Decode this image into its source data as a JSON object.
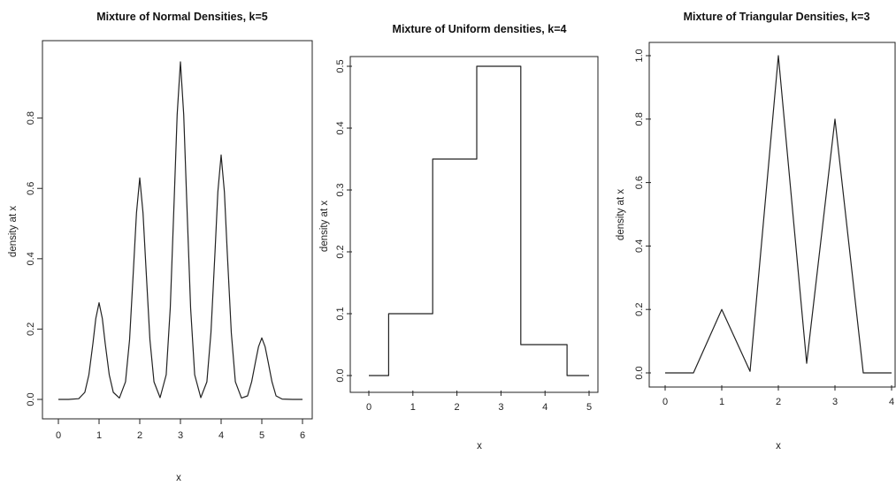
{
  "chart_data": [
    {
      "type": "line",
      "title": "Mixture of Normal Densities, k=5",
      "xlabel": "x",
      "ylabel": "density at x",
      "xlim": [
        0,
        6
      ],
      "ylim": [
        0,
        0.97
      ],
      "xticks": [
        "0",
        "1",
        "2",
        "3",
        "4",
        "5",
        "6"
      ],
      "yticks": [
        "0.0",
        "0.2",
        "0.4",
        "0.6",
        "0.8"
      ],
      "grid": false,
      "series": [
        {
          "x": [
            0,
            0.25,
            0.5,
            0.65,
            0.75,
            0.85,
            0.92,
            1.0,
            1.08,
            1.15,
            1.25,
            1.35,
            1.5,
            1.65,
            1.75,
            1.85,
            1.92,
            2.0,
            2.08,
            2.15,
            2.25,
            2.35,
            2.5,
            2.65,
            2.75,
            2.85,
            2.92,
            3.0,
            3.08,
            3.15,
            3.25,
            3.35,
            3.5,
            3.65,
            3.75,
            3.85,
            3.92,
            4.0,
            4.08,
            4.15,
            4.25,
            4.35,
            4.5,
            4.65,
            4.75,
            4.85,
            4.92,
            5.0,
            5.08,
            5.15,
            5.25,
            5.35,
            5.5,
            5.75,
            6.0
          ],
          "y": [
            0,
            0,
            0.002,
            0.02,
            0.07,
            0.16,
            0.23,
            0.275,
            0.23,
            0.16,
            0.07,
            0.02,
            0.004,
            0.05,
            0.17,
            0.38,
            0.53,
            0.63,
            0.53,
            0.38,
            0.17,
            0.05,
            0.005,
            0.07,
            0.26,
            0.58,
            0.81,
            0.96,
            0.81,
            0.58,
            0.26,
            0.07,
            0.005,
            0.05,
            0.19,
            0.42,
            0.59,
            0.695,
            0.59,
            0.42,
            0.19,
            0.05,
            0.004,
            0.01,
            0.05,
            0.11,
            0.15,
            0.175,
            0.15,
            0.11,
            0.05,
            0.01,
            0.001,
            0,
            0
          ]
        }
      ]
    },
    {
      "type": "line",
      "title": "Mixture of Uniform densities, k=4",
      "xlabel": "x",
      "ylabel": "density at x",
      "xlim": [
        0,
        5
      ],
      "ylim": [
        0,
        0.5
      ],
      "xticks": [
        "0",
        "1",
        "2",
        "3",
        "4",
        "5"
      ],
      "yticks": [
        "0.0",
        "0.1",
        "0.2",
        "0.3",
        "0.4",
        "0.5"
      ],
      "grid": false,
      "series": [
        {
          "x": [
            0,
            0.45,
            0.45,
            1.45,
            1.45,
            2.45,
            2.45,
            3.45,
            3.45,
            4.5,
            4.5,
            5.0
          ],
          "y": [
            0,
            0,
            0.1,
            0.1,
            0.35,
            0.35,
            0.5,
            0.5,
            0.05,
            0.05,
            0,
            0
          ]
        }
      ]
    },
    {
      "type": "line",
      "title": "Mixture of Triangular Densities, k=3",
      "xlabel": "x",
      "ylabel": "density at x",
      "xlim": [
        0,
        4
      ],
      "ylim": [
        0,
        1.0
      ],
      "xticks": [
        "0",
        "1",
        "2",
        "3",
        "4"
      ],
      "yticks": [
        "0.0",
        "0.2",
        "0.4",
        "0.6",
        "0.8",
        "1.0"
      ],
      "grid": false,
      "series": [
        {
          "x": [
            0,
            0.5,
            1.0,
            1.5,
            2.0,
            2.5,
            3.0,
            3.5,
            4.0
          ],
          "y": [
            0,
            0,
            0.2,
            0.005,
            1.0,
            0.03,
            0.8,
            0,
            0
          ]
        }
      ]
    }
  ]
}
